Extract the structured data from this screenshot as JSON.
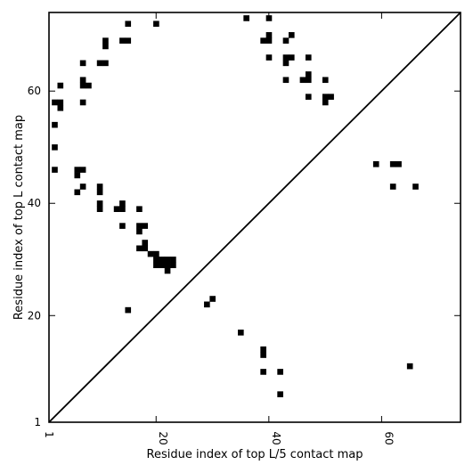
{
  "chart_data": {
    "type": "scatter",
    "title": "",
    "xlabel": "Residue index of top L/5 contact map",
    "ylabel": "Residue index of top L contact map",
    "xlim": [
      1,
      74
    ],
    "ylim": [
      1,
      74
    ],
    "xticks": [
      1,
      20,
      40,
      60
    ],
    "yticks": [
      1,
      20,
      40,
      60
    ],
    "grid": false,
    "diagonal": true,
    "marker": "square",
    "color": "#000000",
    "upper_points": [
      [
        36,
        73
      ],
      [
        40,
        73
      ],
      [
        15,
        72
      ],
      [
        20,
        72
      ],
      [
        44,
        70
      ],
      [
        40,
        70
      ],
      [
        11,
        69
      ],
      [
        14,
        69
      ],
      [
        15,
        69
      ],
      [
        39,
        69
      ],
      [
        40,
        69
      ],
      [
        43,
        69
      ],
      [
        11,
        68
      ],
      [
        40,
        66
      ],
      [
        43,
        66
      ],
      [
        44,
        66
      ],
      [
        47,
        66
      ],
      [
        7,
        65
      ],
      [
        10,
        65
      ],
      [
        11,
        65
      ],
      [
        43,
        65
      ],
      [
        47,
        63
      ],
      [
        7,
        62
      ],
      [
        43,
        62
      ],
      [
        46,
        62
      ],
      [
        47,
        62
      ],
      [
        50,
        62
      ],
      [
        3,
        61
      ],
      [
        7,
        61
      ],
      [
        8,
        61
      ],
      [
        47,
        59
      ],
      [
        50,
        59
      ],
      [
        51,
        59
      ],
      [
        2,
        58
      ],
      [
        3,
        58
      ],
      [
        7,
        58
      ],
      [
        50,
        58
      ],
      [
        3,
        57
      ],
      [
        2,
        54
      ],
      [
        2,
        50
      ],
      [
        2,
        46
      ],
      [
        6,
        46
      ],
      [
        7,
        46
      ],
      [
        6,
        45
      ],
      [
        7,
        43
      ],
      [
        6,
        42
      ],
      [
        10,
        43
      ],
      [
        10,
        42
      ],
      [
        10,
        40
      ],
      [
        10,
        39
      ],
      [
        14,
        40
      ],
      [
        13,
        39
      ],
      [
        14,
        39
      ],
      [
        17,
        39
      ],
      [
        14,
        36
      ],
      [
        17,
        36
      ],
      [
        18,
        36
      ],
      [
        17,
        35
      ],
      [
        18,
        33
      ],
      [
        17,
        32
      ],
      [
        18,
        32
      ],
      [
        19,
        31
      ],
      [
        20,
        31
      ],
      [
        20,
        30
      ],
      [
        21,
        30
      ],
      [
        22,
        30
      ],
      [
        23,
        30
      ],
      [
        20,
        29
      ],
      [
        21,
        29
      ],
      [
        22,
        29
      ],
      [
        23,
        29
      ],
      [
        22,
        28
      ],
      [
        15,
        21
      ]
    ],
    "lower_points": [
      [
        59,
        47
      ],
      [
        62,
        47
      ],
      [
        63,
        47
      ],
      [
        62,
        43
      ],
      [
        66,
        43
      ],
      [
        30,
        23
      ],
      [
        29,
        22
      ],
      [
        35,
        17
      ],
      [
        39,
        14
      ],
      [
        39,
        13
      ],
      [
        65,
        11
      ],
      [
        39,
        10
      ],
      [
        42,
        10
      ],
      [
        42,
        6
      ]
    ]
  }
}
